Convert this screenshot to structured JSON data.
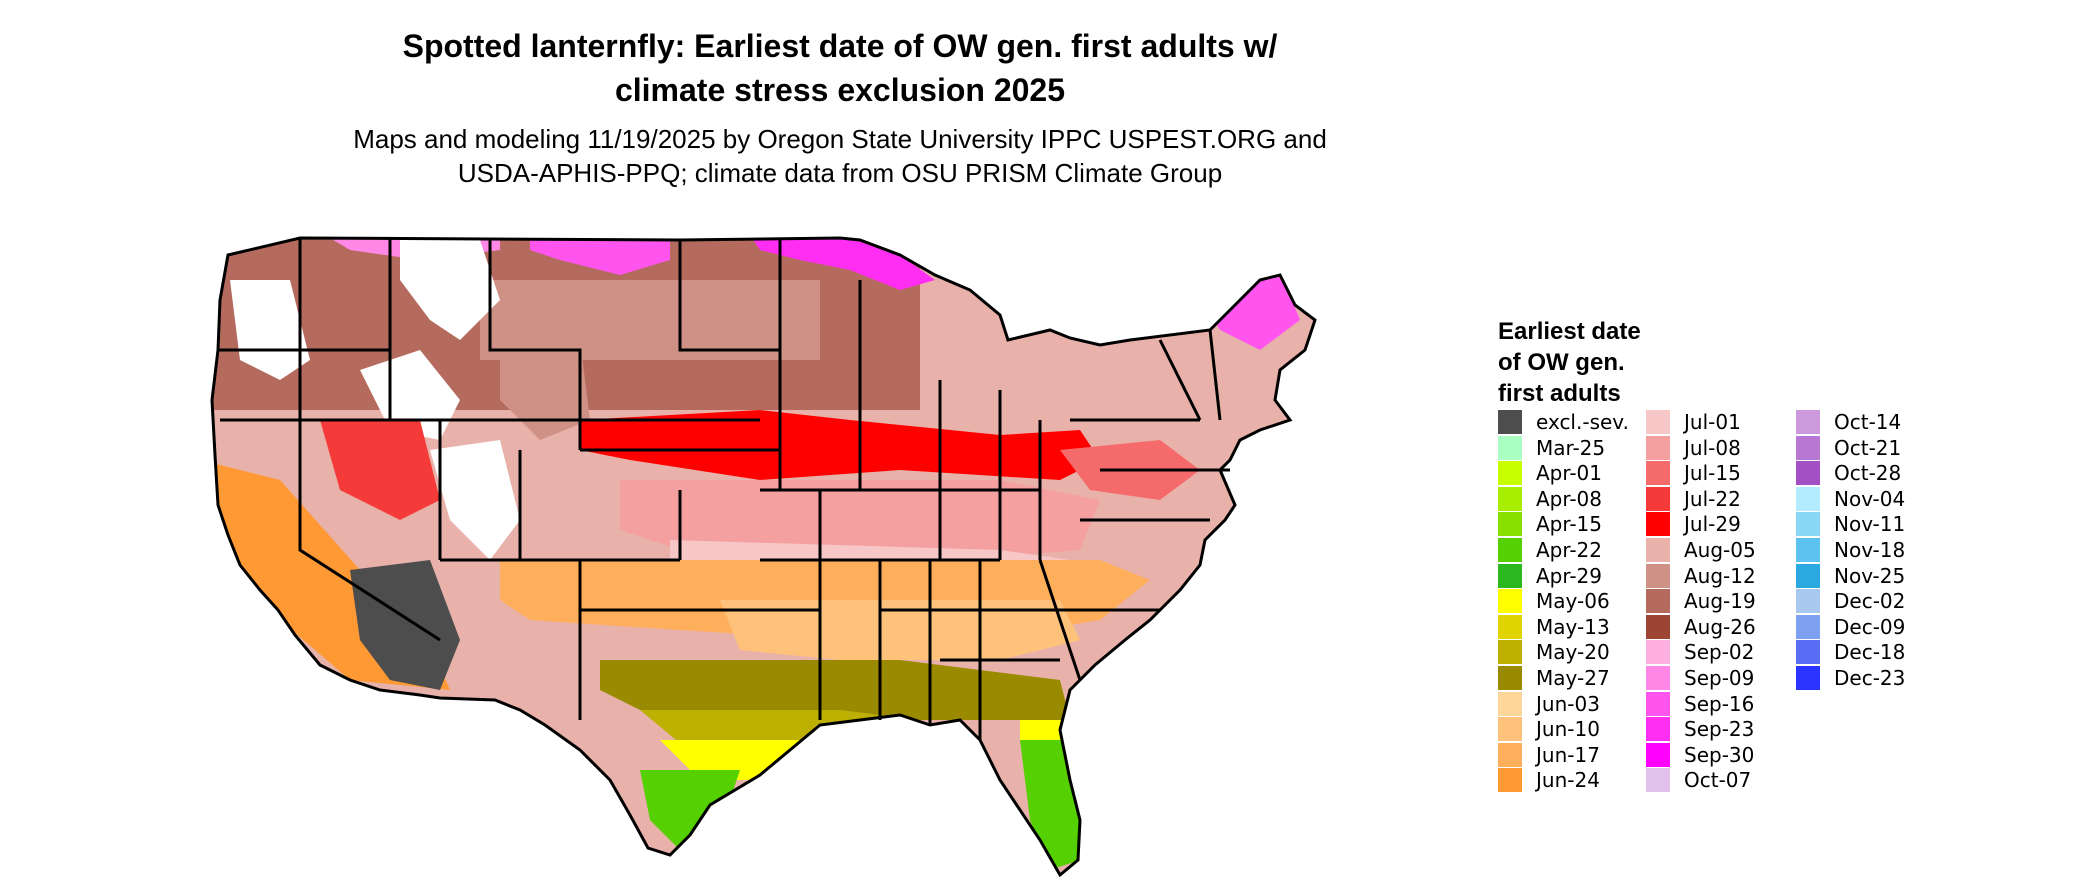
{
  "title_line1": "Spotted lanternfly: Earliest date of OW gen. first adults w/",
  "title_line2": "climate stress exclusion 2025",
  "subtitle_line1": "Maps and modeling 11/19/2025 by Oregon State University IPPC USPEST.ORG and",
  "subtitle_line2": "USDA-APHIS-PPQ; climate data from OSU PRISM Climate Group",
  "legend": {
    "title_line1": "Earliest date",
    "title_line2": "of OW gen.",
    "title_line3": "first adults",
    "columns": [
      [
        {
          "label": "excl.-sev.",
          "color": "#4d4d4d"
        },
        {
          "label": "Mar-25",
          "color": "#aaffc3"
        },
        {
          "label": "Apr-01",
          "color": "#c8ff00"
        },
        {
          "label": "Apr-08",
          "color": "#a8ee00"
        },
        {
          "label": "Apr-15",
          "color": "#88e000"
        },
        {
          "label": "Apr-22",
          "color": "#55d000"
        },
        {
          "label": "Apr-29",
          "color": "#2ab81e"
        },
        {
          "label": "May-06",
          "color": "#ffff00"
        },
        {
          "label": "May-13",
          "color": "#e0d500"
        },
        {
          "label": "May-20",
          "color": "#bdb000"
        },
        {
          "label": "May-27",
          "color": "#9a8a00"
        },
        {
          "label": "Jun-03",
          "color": "#ffd699"
        },
        {
          "label": "Jun-10",
          "color": "#ffc27a"
        },
        {
          "label": "Jun-17",
          "color": "#ffae5c"
        },
        {
          "label": "Jun-24",
          "color": "#ff9933"
        }
      ],
      [
        {
          "label": "Jul-01",
          "color": "#f7c6c6"
        },
        {
          "label": "Jul-08",
          "color": "#f5a0a0"
        },
        {
          "label": "Jul-15",
          "color": "#f56b6b"
        },
        {
          "label": "Jul-22",
          "color": "#f53a3a"
        },
        {
          "label": "Jul-29",
          "color": "#ff0000"
        },
        {
          "label": "Aug-05",
          "color": "#e8b2aa"
        },
        {
          "label": "Aug-12",
          "color": "#cf9085"
        },
        {
          "label": "Aug-19",
          "color": "#b56a5e"
        },
        {
          "label": "Aug-26",
          "color": "#9c4535"
        },
        {
          "label": "Sep-02",
          "color": "#ffb0e0"
        },
        {
          "label": "Sep-09",
          "color": "#ff88e6"
        },
        {
          "label": "Sep-16",
          "color": "#ff55ee"
        },
        {
          "label": "Sep-23",
          "color": "#ff2ef2"
        },
        {
          "label": "Sep-30",
          "color": "#ff00ff"
        },
        {
          "label": "Oct-07",
          "color": "#e2c0ec"
        }
      ],
      [
        {
          "label": "Oct-14",
          "color": "#cc99dd"
        },
        {
          "label": "Oct-21",
          "color": "#b877d2"
        },
        {
          "label": "Oct-28",
          "color": "#a350c4"
        },
        {
          "label": "Nov-04",
          "color": "#b3ecff"
        },
        {
          "label": "Nov-11",
          "color": "#88d8f5"
        },
        {
          "label": "Nov-18",
          "color": "#5cc2ef"
        },
        {
          "label": "Nov-25",
          "color": "#2aa8e0"
        },
        {
          "label": "Dec-02",
          "color": "#a9c8f0"
        },
        {
          "label": "Dec-09",
          "color": "#7f9ff0"
        },
        {
          "label": "Dec-18",
          "color": "#5a6ef5"
        },
        {
          "label": "Dec-23",
          "color": "#2a33ff"
        }
      ]
    ]
  }
}
